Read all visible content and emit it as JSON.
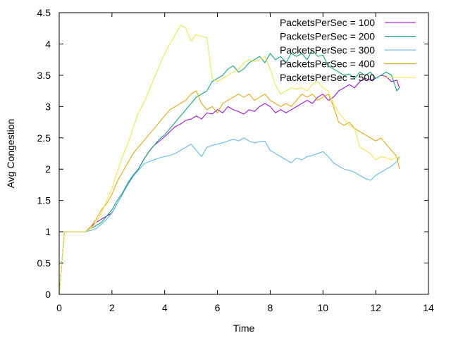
{
  "chart_data": {
    "type": "line",
    "title": "",
    "xlabel": "Time",
    "ylabel": "Avg Congestion",
    "xlim": [
      0,
      14
    ],
    "ylim": [
      0,
      4.5
    ],
    "xticks": [
      0,
      2,
      4,
      6,
      8,
      10,
      12,
      14
    ],
    "yticks": [
      0,
      0.5,
      1,
      1.5,
      2,
      2.5,
      3,
      3.5,
      4,
      4.5
    ],
    "grid": false,
    "legend_position": "top-right",
    "series": [
      {
        "name": "PacketsPerSec = 100",
        "color": "#9400d3",
        "x": [
          0,
          0.2,
          1.0,
          1.2,
          1.4,
          1.6,
          1.8,
          2.0,
          2.2,
          2.4,
          2.6,
          2.8,
          3.0,
          3.2,
          3.4,
          3.6,
          3.8,
          4.0,
          4.2,
          4.4,
          4.6,
          4.8,
          5.0,
          5.2,
          5.4,
          5.6,
          5.8,
          6.0,
          6.2,
          6.4,
          6.6,
          6.8,
          7.0,
          7.2,
          7.4,
          7.6,
          7.8,
          8.0,
          8.2,
          8.4,
          8.6,
          8.8,
          9.0,
          9.2,
          9.4,
          9.6,
          9.8,
          10.0,
          10.2,
          10.4,
          10.6,
          10.8,
          11.0,
          11.2,
          11.4,
          11.6,
          11.8,
          12.0,
          12.2,
          12.4,
          12.6,
          12.8,
          12.9
        ],
        "y": [
          0,
          1.0,
          1.0,
          1.08,
          1.15,
          1.2,
          1.25,
          1.3,
          1.45,
          1.6,
          1.75,
          1.9,
          2.0,
          2.15,
          2.28,
          2.38,
          2.45,
          2.52,
          2.6,
          2.68,
          2.72,
          2.78,
          2.8,
          2.85,
          2.8,
          2.9,
          2.88,
          2.95,
          2.9,
          3.0,
          2.95,
          2.92,
          2.88,
          2.95,
          2.92,
          3.0,
          3.05,
          3.0,
          2.9,
          2.95,
          2.9,
          2.95,
          3.0,
          3.05,
          3.1,
          3.05,
          3.15,
          3.2,
          3.1,
          3.15,
          3.25,
          3.3,
          3.35,
          3.3,
          3.4,
          3.45,
          3.42,
          3.45,
          3.5,
          3.48,
          3.4,
          3.42,
          3.3
        ]
      },
      {
        "name": "PacketsPerSec = 200",
        "color": "#009e73",
        "x": [
          0,
          0.2,
          1.0,
          1.2,
          1.4,
          1.6,
          1.8,
          2.0,
          2.2,
          2.4,
          2.6,
          2.8,
          3.0,
          3.2,
          3.4,
          3.6,
          3.8,
          4.0,
          4.2,
          4.4,
          4.6,
          4.8,
          5.0,
          5.2,
          5.4,
          5.6,
          5.8,
          6.0,
          6.2,
          6.4,
          6.6,
          6.8,
          7.0,
          7.2,
          7.4,
          7.6,
          7.8,
          8.0,
          8.2,
          8.4,
          8.6,
          8.8,
          9.0,
          9.2,
          9.4,
          9.6,
          9.8,
          10.0,
          10.2,
          10.4,
          10.6,
          10.8,
          11.0,
          11.2,
          11.4,
          11.6,
          11.8,
          12.0,
          12.2,
          12.4,
          12.6,
          12.8,
          12.9
        ],
        "y": [
          0,
          1.0,
          1.0,
          1.05,
          1.1,
          1.15,
          1.25,
          1.35,
          1.5,
          1.62,
          1.78,
          1.9,
          2.0,
          2.15,
          2.28,
          2.38,
          2.48,
          2.55,
          2.65,
          2.75,
          2.85,
          2.95,
          3.05,
          3.15,
          3.2,
          3.25,
          3.4,
          3.45,
          3.5,
          3.6,
          3.65,
          3.55,
          3.6,
          3.7,
          3.75,
          3.8,
          3.7,
          3.85,
          3.75,
          3.8,
          3.7,
          3.85,
          3.8,
          3.85,
          3.75,
          3.9,
          3.8,
          3.82,
          3.65,
          3.6,
          3.55,
          3.5,
          3.52,
          3.45,
          3.55,
          3.5,
          3.55,
          3.45,
          3.5,
          3.55,
          3.5,
          3.25,
          3.3
        ]
      },
      {
        "name": "PacketsPerSec = 300",
        "color": "#56b4e9",
        "x": [
          0,
          0.2,
          1.0,
          1.2,
          1.4,
          1.6,
          1.8,
          2.0,
          2.2,
          2.4,
          2.6,
          2.8,
          3.0,
          3.2,
          3.4,
          3.6,
          3.8,
          4.0,
          4.2,
          4.4,
          4.6,
          4.8,
          5.0,
          5.2,
          5.4,
          5.6,
          5.8,
          6.0,
          6.2,
          6.4,
          6.6,
          6.8,
          7.0,
          7.2,
          7.4,
          7.6,
          7.8,
          8.0,
          8.2,
          8.4,
          8.6,
          8.8,
          9.0,
          9.2,
          9.4,
          9.6,
          9.8,
          10.0,
          10.2,
          10.4,
          10.6,
          10.8,
          11.0,
          11.2,
          11.4,
          11.6,
          11.8,
          12.0,
          12.2,
          12.4,
          12.6,
          12.8,
          12.9
        ],
        "y": [
          0,
          1.0,
          1.0,
          1.02,
          1.05,
          1.12,
          1.2,
          1.3,
          1.45,
          1.6,
          1.75,
          1.88,
          1.98,
          2.08,
          2.12,
          2.15,
          2.18,
          2.2,
          2.22,
          2.25,
          2.3,
          2.35,
          2.4,
          2.3,
          2.2,
          2.35,
          2.38,
          2.4,
          2.42,
          2.45,
          2.48,
          2.45,
          2.5,
          2.45,
          2.42,
          2.44,
          2.45,
          2.3,
          2.25,
          2.2,
          2.15,
          2.1,
          2.18,
          2.15,
          2.2,
          2.22,
          2.25,
          2.28,
          2.2,
          2.1,
          2.05,
          2.0,
          1.98,
          1.95,
          1.9,
          1.85,
          1.82,
          1.9,
          1.95,
          2.0,
          2.05,
          2.12,
          2.2
        ]
      },
      {
        "name": "PacketsPerSec = 400",
        "color": "#e69f00",
        "x": [
          0,
          0.2,
          1.0,
          1.2,
          1.4,
          1.6,
          1.8,
          2.0,
          2.2,
          2.4,
          2.6,
          2.8,
          3.0,
          3.2,
          3.4,
          3.6,
          3.8,
          4.0,
          4.2,
          4.4,
          4.6,
          4.8,
          5.0,
          5.2,
          5.4,
          5.6,
          5.8,
          6.0,
          6.2,
          6.4,
          6.6,
          6.8,
          7.0,
          7.2,
          7.4,
          7.6,
          7.8,
          8.0,
          8.2,
          8.4,
          8.6,
          8.8,
          9.0,
          9.2,
          9.4,
          9.6,
          9.8,
          10.0,
          10.2,
          10.4,
          10.6,
          10.8,
          11.0,
          11.2,
          11.4,
          11.6,
          11.8,
          12.0,
          12.2,
          12.4,
          12.6,
          12.8,
          12.9
        ],
        "y": [
          0,
          1.0,
          1.0,
          1.08,
          1.2,
          1.35,
          1.45,
          1.6,
          1.8,
          1.95,
          2.1,
          2.25,
          2.35,
          2.45,
          2.55,
          2.65,
          2.75,
          2.85,
          2.95,
          3.0,
          3.05,
          3.1,
          3.2,
          3.25,
          3.05,
          2.95,
          3.0,
          2.9,
          3.05,
          3.1,
          3.15,
          3.2,
          3.15,
          3.2,
          3.1,
          3.15,
          3.2,
          3.1,
          3.05,
          3.0,
          3.05,
          3.0,
          3.1,
          3.2,
          3.15,
          3.2,
          3.1,
          3.15,
          3.2,
          3.0,
          2.75,
          2.7,
          2.75,
          2.65,
          2.6,
          2.55,
          2.5,
          2.45,
          2.5,
          2.4,
          2.3,
          2.2,
          2.0
        ]
      },
      {
        "name": "PacketsPerSec = 500",
        "color": "#f0e442",
        "x": [
          0,
          0.2,
          1.0,
          1.2,
          1.4,
          1.6,
          1.8,
          2.0,
          2.2,
          2.4,
          2.6,
          2.8,
          3.0,
          3.2,
          3.4,
          3.6,
          3.8,
          4.0,
          4.2,
          4.4,
          4.6,
          4.8,
          5.0,
          5.2,
          5.4,
          5.6,
          5.8,
          6.0,
          6.2,
          6.4,
          6.6,
          6.8,
          7.0,
          7.2,
          7.4,
          7.6,
          7.8,
          8.0,
          8.2,
          8.4,
          8.6,
          8.8,
          9.0,
          9.2,
          9.4,
          9.6,
          9.8,
          10.0,
          10.2,
          10.4,
          10.6,
          10.8,
          11.0,
          11.2,
          11.4,
          11.6,
          11.8,
          12.0,
          12.2,
          12.4,
          12.6,
          12.8,
          12.9
        ],
        "y": [
          0,
          1.0,
          1.0,
          1.05,
          1.15,
          1.3,
          1.5,
          1.7,
          1.95,
          2.2,
          2.4,
          2.65,
          2.9,
          3.05,
          3.25,
          3.45,
          3.65,
          3.85,
          4.0,
          4.15,
          4.3,
          4.25,
          4.05,
          4.15,
          4.12,
          4.1,
          3.45,
          3.4,
          3.45,
          3.5,
          3.55,
          3.6,
          3.7,
          3.75,
          3.72,
          3.75,
          3.8,
          3.6,
          3.35,
          3.2,
          3.25,
          3.3,
          3.28,
          3.3,
          3.25,
          3.35,
          3.4,
          3.3,
          3.25,
          3.05,
          2.9,
          2.8,
          2.7,
          2.65,
          2.35,
          2.3,
          2.25,
          2.15,
          2.2,
          2.18,
          2.15,
          2.2,
          2.15
        ]
      }
    ]
  }
}
